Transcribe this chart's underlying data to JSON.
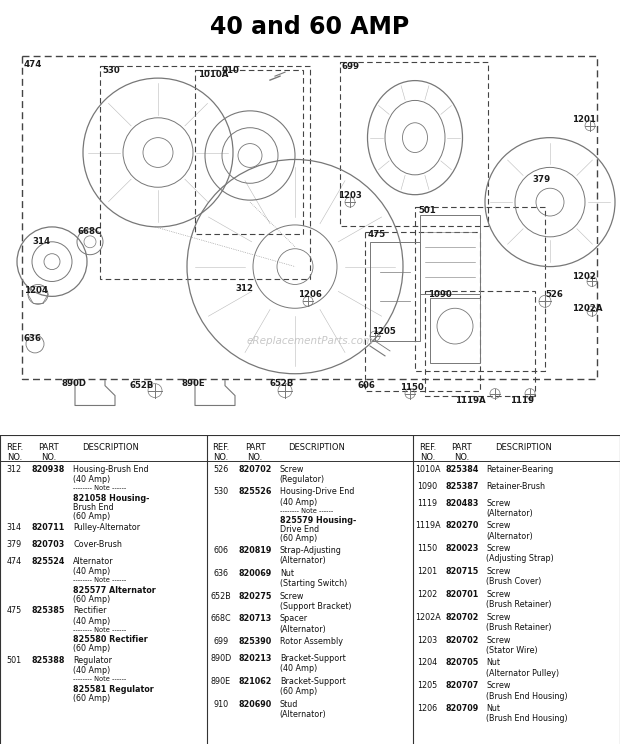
{
  "title": "40 and 60 AMP",
  "bg_color": "#f5f5f0",
  "fig_width": 6.2,
  "fig_height": 7.44,
  "table_rows_col1": [
    {
      "ref": "312",
      "part": "820938",
      "desc": "Housing-Brush End\n(40 Amp)",
      "note": "821058 Housing-\nBrush End\n(60 Amp)"
    },
    {
      "ref": "314",
      "part": "820711",
      "desc": "Pulley-Alternator",
      "note": ""
    },
    {
      "ref": "379",
      "part": "820703",
      "desc": "Cover-Brush",
      "note": ""
    },
    {
      "ref": "474",
      "part": "825524",
      "desc": "Alternator\n(40 Amp)",
      "note": "825577 Alternator\n(60 Amp)"
    },
    {
      "ref": "475",
      "part": "825385",
      "desc": "Rectifier\n(40 Amp)",
      "note": "825580 Rectifier\n(60 Amp)"
    },
    {
      "ref": "501",
      "part": "825388",
      "desc": "Regulator\n(40 Amp)",
      "note": "825581 Regulator\n(60 Amp)"
    }
  ],
  "table_rows_col2": [
    {
      "ref": "526",
      "part": "820702",
      "desc": "Screw\n(Regulator)",
      "note": ""
    },
    {
      "ref": "530",
      "part": "825526",
      "desc": "Housing-Drive End\n(40 Amp)",
      "note": "825579 Housing-\nDrive End\n(60 Amp)"
    },
    {
      "ref": "606",
      "part": "820819",
      "desc": "Strap-Adjusting\n(Alternator)",
      "note": ""
    },
    {
      "ref": "636",
      "part": "820069",
      "desc": "Nut\n(Starting Switch)",
      "note": ""
    },
    {
      "ref": "652B",
      "part": "820275",
      "desc": "Screw\n(Support Bracket)",
      "note": ""
    },
    {
      "ref": "668C",
      "part": "820713",
      "desc": "Spacer\n(Alternator)",
      "note": ""
    },
    {
      "ref": "699",
      "part": "825390",
      "desc": "Rotor Assembly",
      "note": ""
    },
    {
      "ref": "890D",
      "part": "820213",
      "desc": "Bracket-Support\n(40 Amp)",
      "note": ""
    },
    {
      "ref": "890E",
      "part": "821062",
      "desc": "Bracket-Support\n(60 Amp)",
      "note": ""
    },
    {
      "ref": "910",
      "part": "820690",
      "desc": "Stud\n(Alternator)",
      "note": ""
    }
  ],
  "table_rows_col3": [
    {
      "ref": "1010A",
      "part": "825384",
      "desc": "Retainer-Bearing",
      "note": ""
    },
    {
      "ref": "1090",
      "part": "825387",
      "desc": "Retainer-Brush",
      "note": ""
    },
    {
      "ref": "1119",
      "part": "820483",
      "desc": "Screw\n(Alternator)",
      "note": ""
    },
    {
      "ref": "1119A",
      "part": "820270",
      "desc": "Screw\n(Alternator)",
      "note": ""
    },
    {
      "ref": "1150",
      "part": "820023",
      "desc": "Screw\n(Adjusting Strap)",
      "note": ""
    },
    {
      "ref": "1201",
      "part": "820715",
      "desc": "Screw\n(Brush Cover)",
      "note": ""
    },
    {
      "ref": "1202",
      "part": "820701",
      "desc": "Screw\n(Brush Retainer)",
      "note": ""
    },
    {
      "ref": "1202A",
      "part": "820702",
      "desc": "Screw\n(Brush Retainer)",
      "note": ""
    },
    {
      "ref": "1203",
      "part": "820702",
      "desc": "Screw\n(Stator Wire)",
      "note": ""
    },
    {
      "ref": "1204",
      "part": "820705",
      "desc": "Nut\n(Alternator Pulley)",
      "note": ""
    },
    {
      "ref": "1205",
      "part": "820707",
      "desc": "Screw\n(Brush End Housing)",
      "note": ""
    },
    {
      "ref": "1206",
      "part": "820709",
      "desc": "Nut\n(Brush End Housing)",
      "note": ""
    }
  ]
}
